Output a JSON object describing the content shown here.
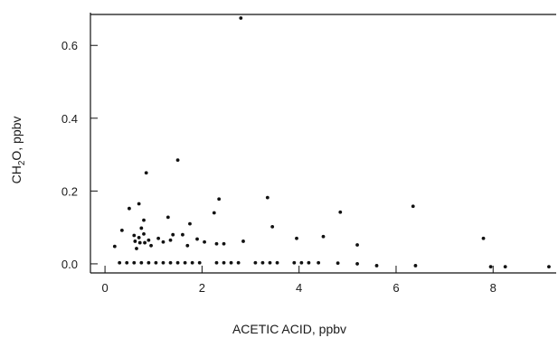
{
  "chart_data": {
    "type": "scatter",
    "title": "",
    "xlabel": "ACETIC ACID, ppbv",
    "ylabel_main": "CH",
    "ylabel_sub": "2",
    "ylabel_rest": "O, ppbv",
    "xlim": [
      -0.3,
      9.3
    ],
    "ylim": [
      -0.025,
      0.685
    ],
    "xticks": [
      0,
      2,
      4,
      6,
      8
    ],
    "xtick_labels": [
      "0",
      "2",
      "4",
      "6",
      "8"
    ],
    "yticks": [
      0.0,
      0.2,
      0.4,
      0.6
    ],
    "ytick_labels": [
      "0.0",
      "0.2",
      "0.4",
      "0.6"
    ],
    "grid": false,
    "legend": "none",
    "marker_color": "#111111",
    "points": [
      [
        0.2,
        0.048
      ],
      [
        0.35,
        0.092
      ],
      [
        0.5,
        0.152
      ],
      [
        0.6,
        0.078
      ],
      [
        0.62,
        0.062
      ],
      [
        0.65,
        0.042
      ],
      [
        0.7,
        0.165
      ],
      [
        0.7,
        0.072
      ],
      [
        0.72,
        0.058
      ],
      [
        0.75,
        0.098
      ],
      [
        0.8,
        0.12
      ],
      [
        0.8,
        0.082
      ],
      [
        0.82,
        0.058
      ],
      [
        0.85,
        0.25
      ],
      [
        0.9,
        0.065
      ],
      [
        0.95,
        0.05
      ],
      [
        1.1,
        0.07
      ],
      [
        1.2,
        0.06
      ],
      [
        1.3,
        0.128
      ],
      [
        1.35,
        0.065
      ],
      [
        1.4,
        0.08
      ],
      [
        1.5,
        0.285
      ],
      [
        1.6,
        0.08
      ],
      [
        1.7,
        0.05
      ],
      [
        1.75,
        0.11
      ],
      [
        1.9,
        0.068
      ],
      [
        2.05,
        0.06
      ],
      [
        2.25,
        0.14
      ],
      [
        2.3,
        0.055
      ],
      [
        2.35,
        0.178
      ],
      [
        2.45,
        0.055
      ],
      [
        2.8,
        0.675
      ],
      [
        2.85,
        0.062
      ],
      [
        3.35,
        0.182
      ],
      [
        3.45,
        0.102
      ],
      [
        3.95,
        0.07
      ],
      [
        4.5,
        0.075
      ],
      [
        4.85,
        0.142
      ],
      [
        5.2,
        0.052
      ],
      [
        6.35,
        0.158
      ],
      [
        7.8,
        0.07
      ],
      [
        0.3,
        0.003
      ],
      [
        0.45,
        0.003
      ],
      [
        0.6,
        0.003
      ],
      [
        0.75,
        0.003
      ],
      [
        0.9,
        0.003
      ],
      [
        1.05,
        0.003
      ],
      [
        1.2,
        0.003
      ],
      [
        1.35,
        0.003
      ],
      [
        1.5,
        0.003
      ],
      [
        1.65,
        0.003
      ],
      [
        1.8,
        0.003
      ],
      [
        1.95,
        0.003
      ],
      [
        2.3,
        0.003
      ],
      [
        2.45,
        0.003
      ],
      [
        2.6,
        0.003
      ],
      [
        2.75,
        0.003
      ],
      [
        3.1,
        0.003
      ],
      [
        3.25,
        0.003
      ],
      [
        3.4,
        0.003
      ],
      [
        3.55,
        0.003
      ],
      [
        3.9,
        0.003
      ],
      [
        4.05,
        0.003
      ],
      [
        4.2,
        0.003
      ],
      [
        4.4,
        0.003
      ],
      [
        4.8,
        0.002
      ],
      [
        5.2,
        0.0
      ],
      [
        5.6,
        -0.005
      ],
      [
        6.4,
        -0.005
      ],
      [
        7.95,
        -0.008
      ],
      [
        8.25,
        -0.008
      ],
      [
        9.15,
        -0.008
      ]
    ]
  }
}
